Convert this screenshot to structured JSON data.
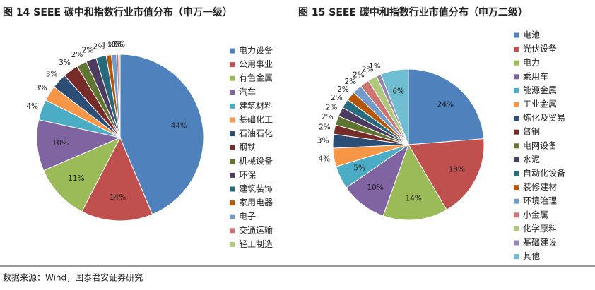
{
  "chart_data": [
    {
      "type": "pie",
      "title": "图 14 SEEE 碳中和指数行业市值分布（申万一级）",
      "categories": [
        "电力设备",
        "公用事业",
        "有色金属",
        "汽车",
        "建筑材料",
        "基础化工",
        "石油石化",
        "钢铁",
        "机械设备",
        "环保",
        "建筑装饰",
        "家用电器",
        "电子",
        "交通运输",
        "轻工制造"
      ],
      "values": [
        44,
        14,
        11,
        10,
        4,
        3,
        3,
        3,
        2,
        2,
        2,
        1,
        1,
        0.4,
        0.3
      ],
      "value_labels": [
        "44%",
        "14%",
        "11%",
        "10%",
        "4%",
        "3%",
        "3%",
        "3%",
        "2%",
        "2%",
        "2%",
        "1%",
        "1%",
        "0%",
        "0%"
      ],
      "colors": [
        "#4F81BD",
        "#C0504D",
        "#9BBB59",
        "#8064A2",
        "#4BACC6",
        "#F79646",
        "#2C4D75",
        "#772C2A",
        "#5F7530",
        "#4D3B62",
        "#276A7C",
        "#B65708",
        "#729ACA",
        "#CD7371",
        "#AFC97A"
      ],
      "legend": "right"
    },
    {
      "type": "pie",
      "title": "图 15 SEEE 碳中和指数行业市值分布（申万二级）",
      "categories": [
        "电池",
        "光伏设备",
        "电力",
        "乘用车",
        "能源金属",
        "工业金属",
        "炼化及贸易",
        "普钢",
        "电网设备",
        "水泥",
        "自动化设备",
        "装修建材",
        "环境治理",
        "小金属",
        "化学原料",
        "基础建设",
        "其他"
      ],
      "values": [
        24,
        18,
        14,
        10,
        5,
        4,
        3,
        2,
        2,
        2,
        2,
        2,
        2,
        2,
        2,
        1,
        6
      ],
      "value_labels": [
        "24%",
        "18%",
        "14%",
        "10%",
        "5%",
        "4%",
        "3%",
        "2%",
        "2%",
        "2%",
        "2%",
        "2%",
        "2%",
        "2%",
        "2%",
        "1%",
        "6%"
      ],
      "colors": [
        "#4F81BD",
        "#C0504D",
        "#9BBB59",
        "#8064A2",
        "#4BACC6",
        "#F79646",
        "#2C4D75",
        "#772C2A",
        "#5F7530",
        "#4D3B62",
        "#276A7C",
        "#B65708",
        "#729ACA",
        "#CD7371",
        "#AFC97A",
        "#9983B5",
        "#6FBDD1"
      ],
      "legend": "right"
    }
  ],
  "source": "数据来源：Wind，国泰君安证券研究"
}
